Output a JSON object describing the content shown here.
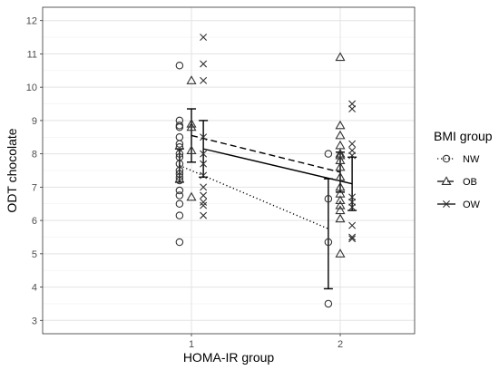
{
  "chart_data": {
    "type": "scatter",
    "xlabel": "HOMA-IR group",
    "ylabel": "ODT chocolate",
    "x_ticks": [
      "1",
      "2"
    ],
    "y_ticks": [
      3,
      4,
      5,
      6,
      7,
      8,
      9,
      10,
      11,
      12
    ],
    "ylim": [
      2.6,
      12.4
    ],
    "grid": true,
    "legend": {
      "title": "BMI group",
      "placement": "right"
    },
    "series": [
      {
        "name": "NW",
        "marker": "circle",
        "line_style": "dotted",
        "points": {
          "1": [
            10.65,
            9.0,
            8.85,
            8.8,
            8.5,
            8.3,
            8.2,
            8.0,
            7.9,
            7.7,
            7.5,
            7.4,
            7.3,
            7.2,
            6.9,
            6.75,
            6.5,
            6.15,
            5.35
          ],
          "2": [
            8.0,
            6.65,
            5.35,
            3.5
          ]
        },
        "mean": {
          "1": 7.65,
          "2": 5.75
        },
        "error": {
          "1": [
            7.15,
            8.15
          ],
          "2": [
            3.95,
            7.25
          ]
        }
      },
      {
        "name": "OB",
        "marker": "triangle",
        "line_style": "dashed",
        "points": {
          "1": [
            10.2,
            8.9,
            8.8,
            8.1,
            6.7
          ],
          "2": [
            10.9,
            8.85,
            8.55,
            8.25,
            8.0,
            7.95,
            7.8,
            7.6,
            7.3,
            7.0,
            6.8,
            6.6,
            6.45,
            6.3,
            6.05,
            5.0
          ]
        },
        "mean": {
          "1": 8.55,
          "2": 7.45
        },
        "error": {
          "1": [
            7.75,
            9.35
          ],
          "2": [
            6.85,
            8.05
          ]
        }
      },
      {
        "name": "OW",
        "marker": "x",
        "line_style": "solid",
        "points": {
          "1": [
            11.5,
            10.7,
            10.2,
            8.5,
            8.0,
            7.7,
            7.35,
            7.0,
            6.75,
            6.55,
            6.45,
            6.15
          ],
          "2": [
            9.5,
            9.35,
            8.3,
            8.1,
            7.95,
            6.7,
            6.55,
            6.4,
            5.85,
            5.5,
            5.45
          ]
        },
        "mean": {
          "1": 8.15,
          "2": 7.1
        },
        "error": {
          "1": [
            7.3,
            9.0
          ],
          "2": [
            6.3,
            7.9
          ]
        }
      }
    ]
  }
}
